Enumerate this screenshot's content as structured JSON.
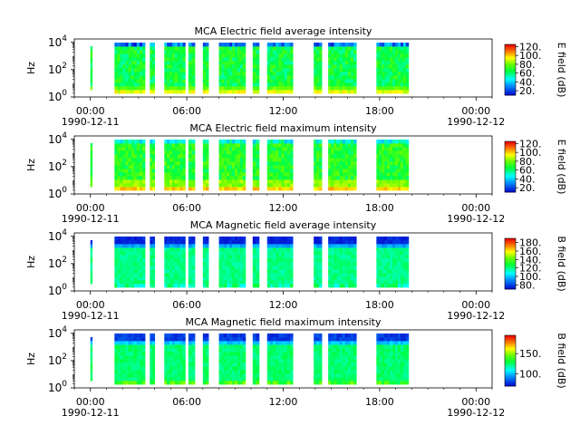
{
  "chart_data": [
    {
      "type": "heatmap",
      "title": "MCA  Electric field average intensity",
      "ylabel": "Hz",
      "ylim": [
        1,
        17782
      ],
      "yscale": "log",
      "y_ticks": [
        {
          "base": "10",
          "exp": "0",
          "value": 1
        },
        {
          "base": "10",
          "exp": "2",
          "value": 100
        },
        {
          "base": "10",
          "exp": "4",
          "value": 10000
        }
      ],
      "x_ticks": [
        {
          "time": "00:00",
          "date": "1990-12-11",
          "hour": 0
        },
        {
          "time": "06:00",
          "date": "",
          "hour": 6
        },
        {
          "time": "12:00",
          "date": "",
          "hour": 12
        },
        {
          "time": "18:00",
          "date": "",
          "hour": 18
        },
        {
          "time": "00:00",
          "date": "1990-12-12",
          "hour": 24
        }
      ],
      "xlim_hours": [
        -1,
        25
      ],
      "colorbar": {
        "label": "E field (dB)",
        "range": [
          10,
          125
        ],
        "ticks": [
          "20.",
          "40.",
          "60.",
          "80.",
          "100.",
          "120."
        ],
        "tick_values": [
          20,
          40,
          60,
          80,
          100,
          120
        ]
      },
      "profile": "e_avg"
    },
    {
      "type": "heatmap",
      "title": "MCA  Electric field maximum intensity",
      "ylabel": "Hz",
      "ylim": [
        1,
        17782
      ],
      "yscale": "log",
      "y_ticks": [
        {
          "base": "10",
          "exp": "0",
          "value": 1
        },
        {
          "base": "10",
          "exp": "2",
          "value": 100
        },
        {
          "base": "10",
          "exp": "4",
          "value": 10000
        }
      ],
      "x_ticks": [
        {
          "time": "00:00",
          "date": "1990-12-11",
          "hour": 0
        },
        {
          "time": "06:00",
          "date": "",
          "hour": 6
        },
        {
          "time": "12:00",
          "date": "",
          "hour": 12
        },
        {
          "time": "18:00",
          "date": "",
          "hour": 18
        },
        {
          "time": "00:00",
          "date": "1990-12-12",
          "hour": 24
        }
      ],
      "xlim_hours": [
        -1,
        25
      ],
      "colorbar": {
        "label": "E field (dB)",
        "range": [
          10,
          125
        ],
        "ticks": [
          "20.",
          "40.",
          "60.",
          "80.",
          "100.",
          "120."
        ],
        "tick_values": [
          20,
          40,
          60,
          80,
          100,
          120
        ]
      },
      "profile": "e_max"
    },
    {
      "type": "heatmap",
      "title": "MCA  Magnetic field average intensity",
      "ylabel": "Hz",
      "ylim": [
        1,
        17782
      ],
      "yscale": "log",
      "y_ticks": [
        {
          "base": "10",
          "exp": "0",
          "value": 1
        },
        {
          "base": "10",
          "exp": "2",
          "value": 100
        },
        {
          "base": "10",
          "exp": "4",
          "value": 10000
        }
      ],
      "x_ticks": [
        {
          "time": "00:00",
          "date": "1990-12-11",
          "hour": 0
        },
        {
          "time": "06:00",
          "date": "",
          "hour": 6
        },
        {
          "time": "12:00",
          "date": "",
          "hour": 12
        },
        {
          "time": "18:00",
          "date": "",
          "hour": 18
        },
        {
          "time": "00:00",
          "date": "1990-12-12",
          "hour": 24
        }
      ],
      "xlim_hours": [
        -1,
        25
      ],
      "colorbar": {
        "label": "B field (dB)",
        "range": [
          70,
          190
        ],
        "ticks": [
          "80.",
          "100.",
          "120.",
          "140.",
          "160.",
          "180."
        ],
        "tick_values": [
          80,
          100,
          120,
          140,
          160,
          180
        ]
      },
      "profile": "b_avg"
    },
    {
      "type": "heatmap",
      "title": "MCA  Magnetic field maximum intensity",
      "ylabel": "Hz",
      "ylim": [
        1,
        17782
      ],
      "yscale": "log",
      "y_ticks": [
        {
          "base": "10",
          "exp": "0",
          "value": 1
        },
        {
          "base": "10",
          "exp": "2",
          "value": 100
        },
        {
          "base": "10",
          "exp": "4",
          "value": 10000
        }
      ],
      "x_ticks": [
        {
          "time": "00:00",
          "date": "1990-12-11",
          "hour": 0
        },
        {
          "time": "06:00",
          "date": "",
          "hour": 6
        },
        {
          "time": "12:00",
          "date": "",
          "hour": 12
        },
        {
          "time": "18:00",
          "date": "",
          "hour": 18
        },
        {
          "time": "00:00",
          "date": "1990-12-12",
          "hour": 24
        }
      ],
      "xlim_hours": [
        -1,
        25
      ],
      "colorbar": {
        "label": "B field (dB)",
        "range": [
          70,
          195
        ],
        "ticks": [
          "100.",
          "150."
        ],
        "tick_values": [
          100,
          150
        ]
      },
      "profile": "b_max"
    }
  ],
  "data_intervals_hours": [
    [
      0.0,
      0.1
    ],
    [
      1.5,
      3.4
    ],
    [
      3.7,
      4.0
    ],
    [
      4.6,
      5.9
    ],
    [
      6.1,
      6.5
    ],
    [
      7.0,
      7.35
    ],
    [
      8.0,
      9.65
    ],
    [
      10.1,
      10.5
    ],
    [
      11.0,
      12.6
    ],
    [
      13.9,
      14.4
    ],
    [
      14.8,
      16.55
    ],
    [
      17.8,
      19.8
    ]
  ]
}
